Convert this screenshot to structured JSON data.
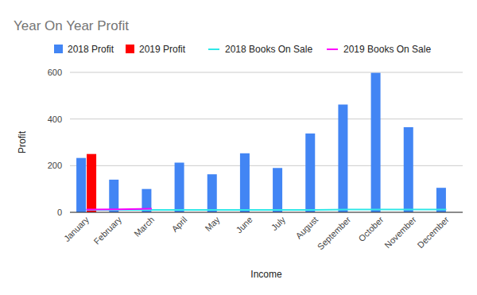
{
  "chart_data": {
    "type": "bar",
    "title": "Year On Year Profit",
    "x_label": "Income",
    "y_label": "Profit",
    "categories": [
      "January",
      "February",
      "March",
      "April",
      "May",
      "June",
      "July",
      "August",
      "September",
      "October",
      "November",
      "December"
    ],
    "series": [
      {
        "name": "2018 Profit",
        "type": "bar",
        "color": "#4285f4",
        "values": [
          233,
          140,
          100,
          213,
          163,
          253,
          190,
          338,
          462,
          598,
          365,
          105
        ]
      },
      {
        "name": "2019 Profit",
        "type": "bar",
        "color": "#ff0000",
        "values": [
          250,
          null,
          null,
          null,
          null,
          null,
          null,
          null,
          null,
          null,
          null,
          null
        ]
      },
      {
        "name": "2018 Books On Sale",
        "type": "line",
        "color": "#2fe8e8",
        "values": [
          10,
          10,
          10,
          10,
          10,
          10,
          10,
          10,
          12,
          12,
          12,
          12
        ]
      },
      {
        "name": "2019 Books On Sale",
        "type": "line",
        "color": "#ff00ff",
        "values": [
          12,
          13,
          15,
          null,
          null,
          null,
          null,
          null,
          null,
          null,
          null,
          null
        ]
      }
    ],
    "ylim": [
      0,
      600
    ],
    "yticks": [
      0,
      200,
      400,
      600
    ],
    "grid": true,
    "legend": "top"
  }
}
